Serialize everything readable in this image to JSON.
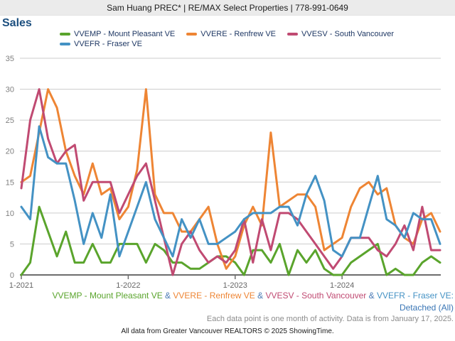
{
  "header": {
    "title": "Sam Huang PREC* | RE/MAX Select Properties | 778-991-0649"
  },
  "page_title": "Sales",
  "footer": {
    "series_line": {
      "parts": [
        {
          "text": "VVEMP - Mount Pleasant VE",
          "color": "#5aa42c"
        },
        {
          "text": " & ",
          "color": "#4a7ab5"
        },
        {
          "text": "VVERE - Renfrew VE",
          "color": "#ee8534"
        },
        {
          "text": " & ",
          "color": "#4a7ab5"
        },
        {
          "text": "VVESV - South Vancouver",
          "color": "#c04a72"
        },
        {
          "text": " & ",
          "color": "#4a7ab5"
        },
        {
          "text": "VVEFR - Fraser VE:",
          "color": "#4492c4"
        }
      ]
    },
    "subtype_label": {
      "text": "Detached (All)",
      "color": "#3a76b5"
    },
    "data_note": "Each data point is one month of activity. Data is from January 17, 2025.",
    "attribution": "All data from Greater Vancouver REALTORS © 2025 ShowingTime."
  },
  "chart_data": {
    "type": "line",
    "title": "Sales",
    "xlabel": "",
    "ylabel": "Sales",
    "ylim": [
      0,
      35
    ],
    "y_ticks": [
      0,
      5,
      10,
      15,
      20,
      25,
      30,
      35
    ],
    "grid": true,
    "months": 48,
    "x_start": "1-2021",
    "x_end": "12-2024",
    "x_tick_labels": [
      "1-2021",
      "1-2022",
      "1-2023",
      "1-2024"
    ],
    "x_tick_month_index": [
      0,
      12,
      24,
      36
    ],
    "axis_colors": {
      "gridline": "#cccccc",
      "axis": "#6d6d6d",
      "y_label": "#7f7f7f",
      "x_label": "#666666"
    },
    "series": [
      {
        "id": "VVEMP",
        "label": "VVEMP - Mount Pleasant VE",
        "color": "#5aa42c",
        "values": [
          0,
          2,
          11,
          7,
          3,
          7,
          2,
          2,
          5,
          2,
          2,
          5,
          5,
          5,
          2,
          5,
          4,
          2,
          2,
          1,
          1,
          2,
          3,
          3,
          2,
          0,
          4,
          4,
          2,
          5,
          0,
          4,
          2,
          4,
          1,
          0,
          0,
          2,
          3,
          4,
          5,
          0,
          1,
          0,
          0,
          2,
          3,
          2
        ]
      },
      {
        "id": "VVERE",
        "label": "VVERE - Renfrew VE",
        "color": "#ee8534",
        "values": [
          15,
          16,
          23,
          30,
          27,
          20,
          16,
          13,
          18,
          13,
          14,
          9,
          11,
          17,
          30,
          13,
          10,
          10,
          7,
          7,
          9,
          11,
          5,
          1,
          3,
          8,
          11,
          8,
          23,
          11,
          12,
          13,
          13,
          11,
          4,
          5,
          6,
          11,
          14,
          15,
          13,
          14,
          8,
          6,
          5,
          9,
          10,
          7
        ]
      },
      {
        "id": "VVESV",
        "label": "VVESV - South Vancouver",
        "color": "#c04a72",
        "values": [
          14,
          25,
          30,
          22,
          18,
          20,
          21,
          12,
          15,
          15,
          15,
          10,
          13,
          16,
          18,
          12,
          6,
          0,
          5,
          7,
          4,
          2,
          3,
          2,
          4,
          9,
          2,
          9,
          4,
          10,
          10,
          9,
          7,
          5,
          3,
          1,
          3,
          6,
          6,
          6,
          4,
          3,
          5,
          8,
          4,
          11,
          4,
          4
        ]
      },
      {
        "id": "VVEFR",
        "label": "VVEFR - Fraser VE",
        "color": "#4492c4",
        "values": [
          11,
          9,
          24,
          19,
          18,
          18,
          12,
          5,
          10,
          6,
          13,
          3,
          7,
          11,
          15,
          9,
          6,
          3,
          9,
          6,
          9,
          5,
          5,
          6,
          7,
          9,
          10,
          10,
          10,
          11,
          11,
          8,
          13,
          16,
          12,
          4,
          3,
          6,
          6,
          11,
          16,
          9,
          8,
          6,
          10,
          9,
          9,
          5
        ]
      }
    ],
    "legend_position": "top",
    "footnote": "Detached (All)"
  }
}
